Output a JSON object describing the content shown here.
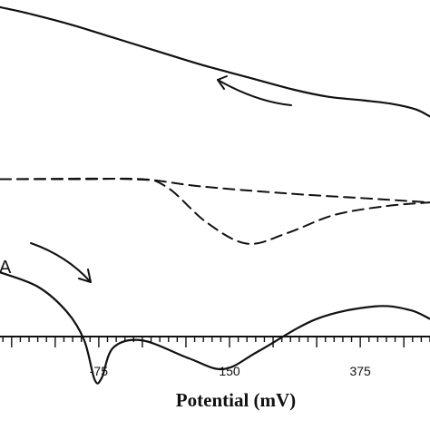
{
  "chart_data": {
    "type": "line",
    "xlabel": "Potential (mV)",
    "ylabel": "",
    "xticks": [
      "-75",
      "150",
      "375"
    ],
    "xtick_values": [
      -75,
      150,
      375
    ],
    "annotations": [
      {
        "text": "A"
      }
    ],
    "series": [
      {
        "style": "solid",
        "values": [
          {
            "x": -245,
            "y": 0.96
          },
          {
            "x": -190,
            "y": 0.92
          },
          {
            "x": -120,
            "y": 0.86
          },
          {
            "x": -50,
            "y": 0.79
          },
          {
            "x": 20,
            "y": 0.72
          },
          {
            "x": 100,
            "y": 0.64
          },
          {
            "x": 180,
            "y": 0.57
          },
          {
            "x": 260,
            "y": 0.5
          },
          {
            "x": 320,
            "y": 0.46
          },
          {
            "x": 380,
            "y": 0.44
          },
          {
            "x": 430,
            "y": 0.42
          },
          {
            "x": 470,
            "y": 0.39
          },
          {
            "x": 495,
            "y": 0.35
          }
        ]
      },
      {
        "style": "dashed",
        "values": [
          {
            "x": -245,
            "y": 0.0
          },
          {
            "x": -100,
            "y": 0.0
          },
          {
            "x": 0,
            "y": 0.0
          },
          {
            "x": 100,
            "y": -0.04
          },
          {
            "x": 250,
            "y": -0.08
          },
          {
            "x": 400,
            "y": -0.11
          },
          {
            "x": 495,
            "y": -0.13
          }
        ]
      },
      {
        "style": "dashed",
        "values": [
          {
            "x": -245,
            "y": 0.0
          },
          {
            "x": -20,
            "y": 0.0
          },
          {
            "x": 40,
            "y": -0.04
          },
          {
            "x": 110,
            "y": -0.24
          },
          {
            "x": 180,
            "y": -0.36
          },
          {
            "x": 250,
            "y": -0.3
          },
          {
            "x": 330,
            "y": -0.2
          },
          {
            "x": 420,
            "y": -0.15
          },
          {
            "x": 495,
            "y": -0.13
          }
        ]
      },
      {
        "style": "solid",
        "values": [
          {
            "x": -245,
            "y": -0.52
          },
          {
            "x": -180,
            "y": -0.6
          },
          {
            "x": -130,
            "y": -0.74
          },
          {
            "x": -100,
            "y": -0.9
          },
          {
            "x": -82,
            "y": -1.12
          },
          {
            "x": -70,
            "y": -1.11
          },
          {
            "x": -50,
            "y": -0.94
          },
          {
            "x": 0,
            "y": -0.9
          },
          {
            "x": 80,
            "y": -1.0
          },
          {
            "x": 140,
            "y": -1.06
          },
          {
            "x": 200,
            "y": -0.96
          },
          {
            "x": 300,
            "y": -0.78
          },
          {
            "x": 400,
            "y": -0.71
          },
          {
            "x": 460,
            "y": -0.73
          },
          {
            "x": 495,
            "y": -0.78
          }
        ]
      }
    ],
    "xlim": [
      -245,
      495
    ],
    "ylim": [
      -1.4,
      1.0
    ],
    "grid": false,
    "arrows": [
      {
        "direction": "left",
        "curve": "upper"
      },
      {
        "direction": "down-right",
        "curve": "lower"
      }
    ]
  }
}
